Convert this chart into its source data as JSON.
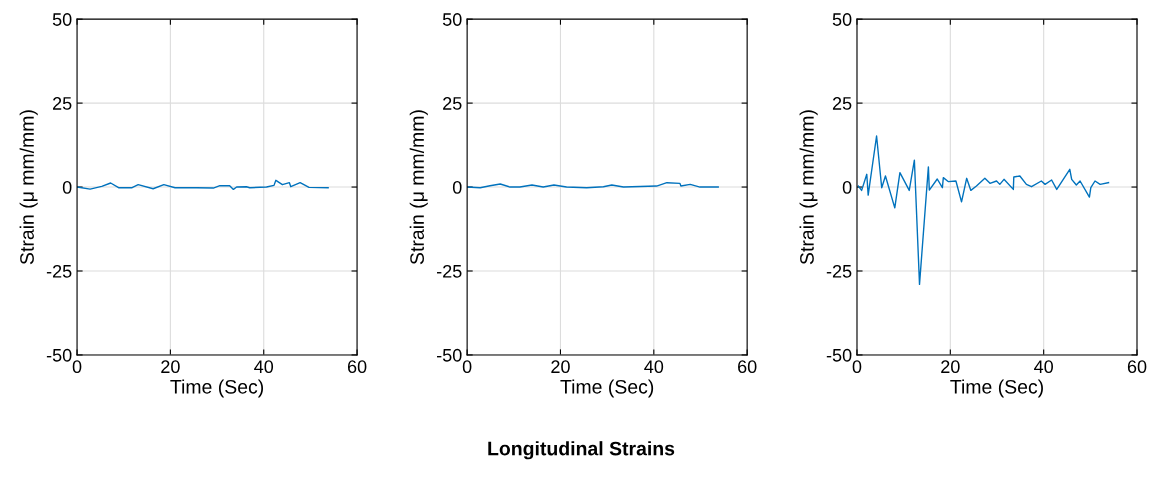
{
  "chart_data": [
    {
      "type": "line",
      "xlabel": "Time (Sec)",
      "ylabel": "Strain (μ mm/mm)",
      "xlim": [
        0,
        60
      ],
      "xticks": [
        0,
        20,
        40,
        60
      ],
      "ylim": [
        -50,
        50
      ],
      "yticks": [
        -50,
        -25,
        0,
        25,
        50
      ],
      "grid": true,
      "series": [
        {
          "color": "#0072bd",
          "x": [
            0,
            2.8,
            5.3,
            7.2,
            8.9,
            11.8,
            13.1,
            16.3,
            18.6,
            21,
            25.6,
            29.2,
            30.6,
            32.7,
            33.5,
            34.2,
            36.3,
            37.0,
            40.6,
            42.2,
            42.6,
            44.0,
            45.5,
            45.8,
            47.8,
            49.7,
            53.8
          ],
          "values": [
            0,
            -0.6,
            0.2,
            1.2,
            -0.2,
            -0.2,
            0.7,
            -0.5,
            0.7,
            -0.2,
            -0.2,
            -0.3,
            0.4,
            0.4,
            -0.7,
            0,
            0.1,
            -0.2,
            0,
            0.5,
            2,
            0.7,
            1.3,
            0.1,
            1.3,
            -0.1,
            -0.2
          ]
        }
      ]
    },
    {
      "type": "line",
      "xlabel": "Time (Sec)",
      "ylabel": "Strain (μ mm/mm)",
      "xlim": [
        0,
        60
      ],
      "xticks": [
        0,
        20,
        40,
        60
      ],
      "ylim": [
        -50,
        50
      ],
      "yticks": [
        -50,
        -25,
        0,
        25,
        50
      ],
      "grid": true,
      "annotations": [
        "Longitudinal Strains"
      ],
      "series": [
        {
          "color": "#0072bd",
          "x": [
            0,
            2.8,
            4.9,
            7.1,
            9.2,
            11.3,
            13.9,
            16.3,
            18.6,
            21.3,
            25.6,
            29.2,
            31,
            33.5,
            40.6,
            42.8,
            45.6,
            45.8,
            47.8,
            49.9,
            53.8
          ],
          "values": [
            0,
            -0.2,
            0.4,
            0.9,
            0,
            0,
            0.6,
            0,
            0.6,
            0,
            -0.2,
            0.1,
            0.6,
            0,
            0.3,
            1.3,
            1.1,
            0.3,
            0.8,
            0,
            0
          ]
        }
      ]
    },
    {
      "type": "line",
      "xlabel": "Time (Sec)",
      "ylabel": "Strain (μ mm/mm)",
      "xlim": [
        0,
        60
      ],
      "xticks": [
        0,
        20,
        40,
        60
      ],
      "ylim": [
        -50,
        50
      ],
      "yticks": [
        -50,
        -25,
        0,
        25,
        50
      ],
      "grid": true,
      "series": [
        {
          "color": "#0072bd",
          "x": [
            0.3,
            1.0,
            2.1,
            2.4,
            4.2,
            5.3,
            6.1,
            8.1,
            9.2,
            11.2,
            12.3,
            13.4,
            15.3,
            15.5,
            17.2,
            18.3,
            18.5,
            19.6,
            21.2,
            22.4,
            23.5,
            24.4,
            25.6,
            27.4,
            28.5,
            29.9,
            30.6,
            31.5,
            33.5,
            33.6,
            34.9,
            36.3,
            37.4,
            39.5,
            40.3,
            41.7,
            42.8,
            45.6,
            46.0,
            47.0,
            47.8,
            49.8,
            50.1,
            51.0,
            52.1,
            53.9
          ],
          "values": [
            0.3,
            -1,
            3.8,
            -2.4,
            15.2,
            -0.2,
            3.3,
            -6.2,
            4.3,
            -1,
            8,
            -29,
            6,
            -0.9,
            2.4,
            -0.2,
            2.8,
            1.6,
            1.8,
            -4.4,
            2.6,
            -1,
            0.3,
            2.6,
            1.1,
            1.8,
            0.8,
            2.3,
            -0.7,
            3,
            3.3,
            0.8,
            0.1,
            1.8,
            0.8,
            2.1,
            -0.7,
            5.3,
            2.3,
            0.6,
            1.8,
            -3,
            -0.2,
            1.8,
            0.8,
            1.3
          ]
        }
      ]
    }
  ]
}
